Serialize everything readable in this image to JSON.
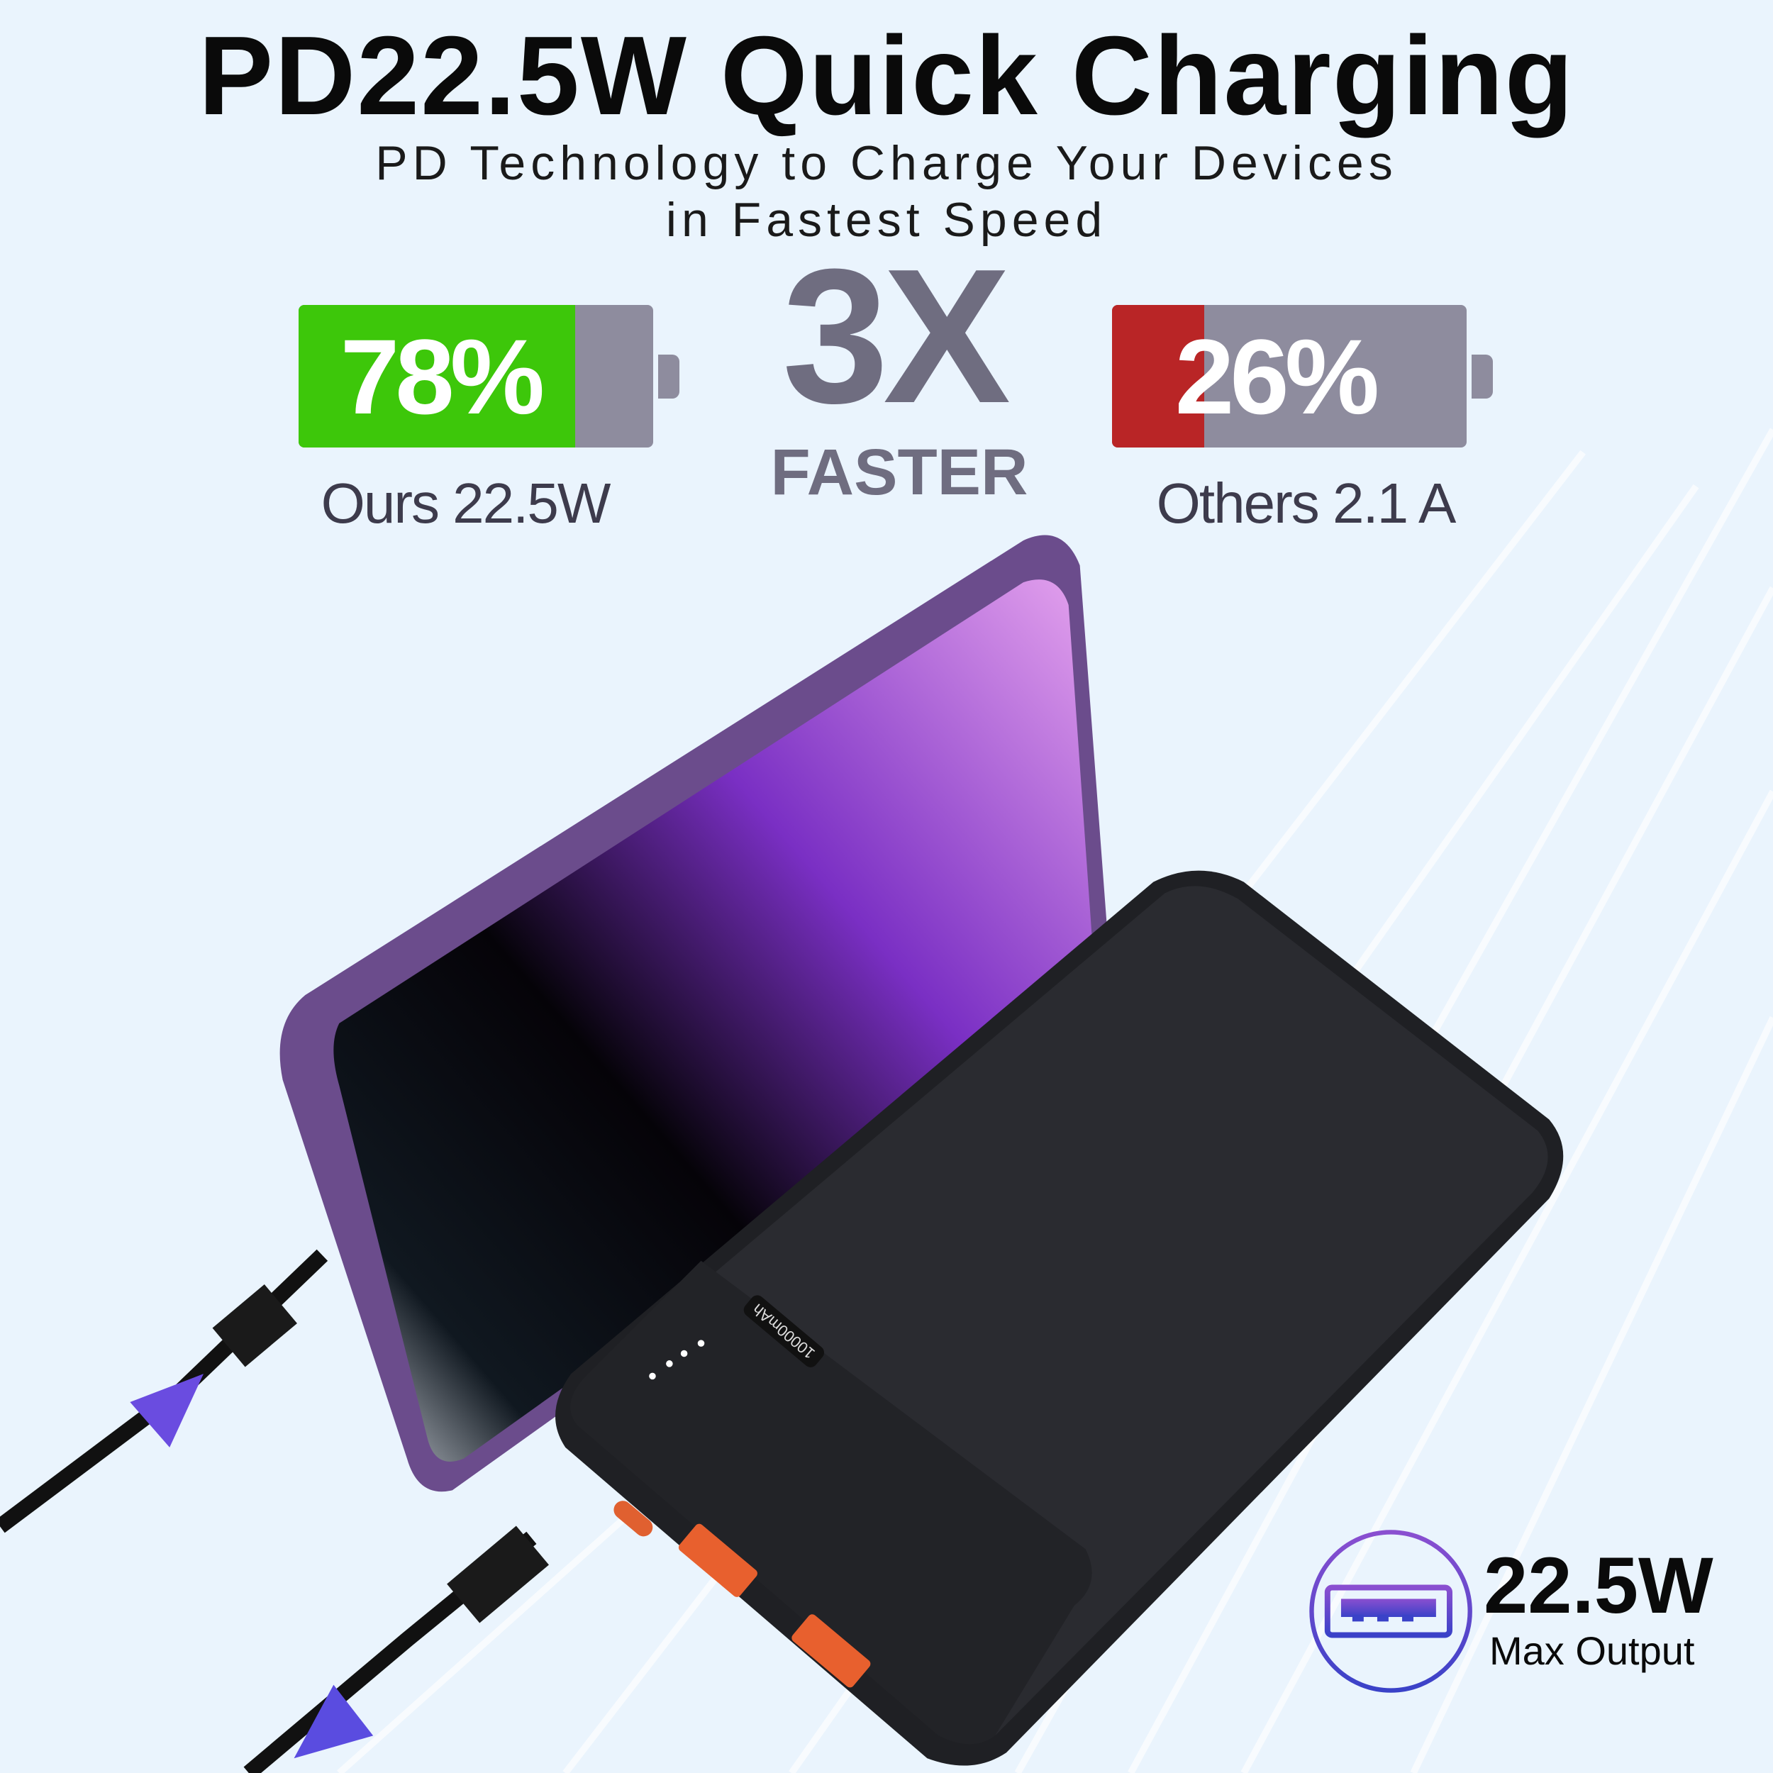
{
  "header": {
    "title": "PD22.5W Quick Charging",
    "subtitle_line1": "PD Technology to Charge Your Devices",
    "subtitle_line2": "in Fastest Speed"
  },
  "comparison": {
    "ours": {
      "percent_label": "78%",
      "level": 78,
      "label": "Ours 22.5W",
      "color": "#3dc70a"
    },
    "multiplier": "3X",
    "multiplier_caption": "FASTER",
    "others": {
      "percent_label": "26%",
      "level": 26,
      "label": "Others 2.1 A",
      "color": "#b92526"
    }
  },
  "product": {
    "capacity_label": "10000mAh"
  },
  "badge": {
    "icon": "usb-port-icon",
    "value": "22.5W",
    "caption": "Max Output"
  }
}
